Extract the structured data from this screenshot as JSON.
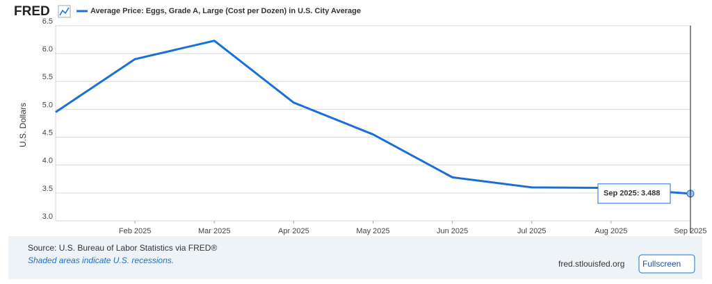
{
  "chart_data": {
    "type": "line",
    "brand": "FRED",
    "y_label": "U.S. Dollars",
    "categories": [
      null,
      "Feb 2025",
      "Mar 2025",
      "Apr 2025",
      "May 2025",
      "Jun 2025",
      "Jul 2025",
      "Aug 2025",
      "Sep 2025"
    ],
    "series": [
      {
        "name": "Average Price: Eggs, Grade A, Large (Cost per Dozen) in U.S. City Average",
        "color": "#1a6fd6",
        "values": [
          4.95,
          5.9,
          6.23,
          5.12,
          4.55,
          3.78,
          3.6,
          3.59,
          3.488
        ]
      }
    ],
    "ylim": [
      3.0,
      6.5
    ],
    "yticks": [
      {
        "value": 3,
        "label": "3.0"
      },
      3.5,
      {
        "value": 4,
        "label": "4.0"
      },
      4.5,
      {
        "value": 5,
        "label": "5.0"
      },
      5.5,
      {
        "value": 6,
        "label": "6.0"
      },
      6.5
    ],
    "grid": true,
    "tooltip": {
      "label": "Sep 2025:"
    },
    "source": "Source: U.S. Bureau of Labor Statistics via FRED®",
    "note": "Shaded areas indicate U.S. recessions.",
    "site": "fred.stlouisfed.org",
    "button": "Fullscreen"
  }
}
